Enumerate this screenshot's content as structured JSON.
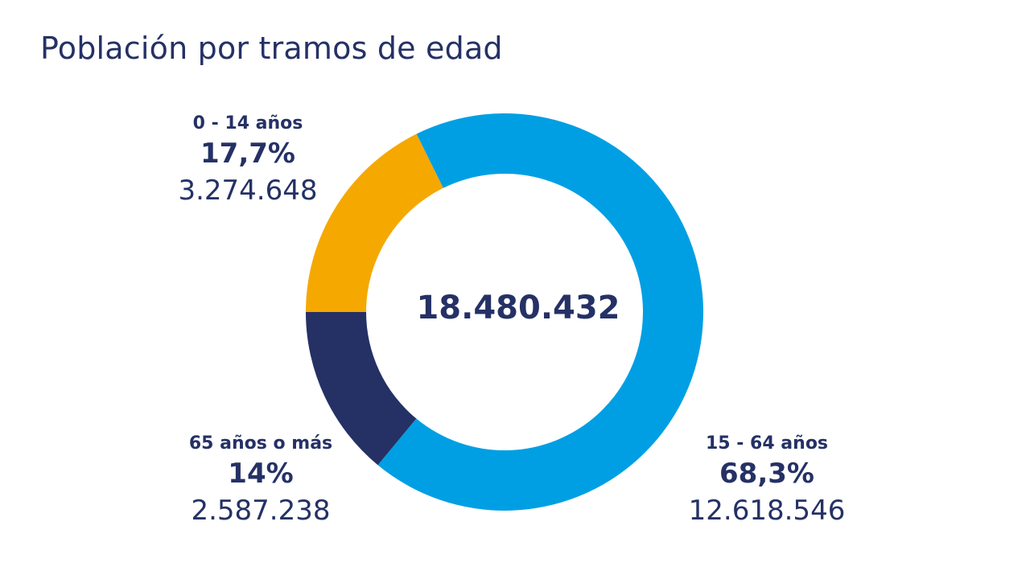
{
  "chart_data": {
    "type": "pie",
    "title": "Población por tramos de edad",
    "total": "18.480.432",
    "slices": [
      {
        "name": "0 - 14 años",
        "percent_label": "17,7%",
        "percent": 17.7,
        "value_label": "3.274.648",
        "value": 3274648,
        "color": "#F5A800"
      },
      {
        "name": "15 - 64 años",
        "percent_label": "68,3%",
        "percent": 68.3,
        "value_label": "12.618.546",
        "value": 12618546,
        "color": "#009FE3"
      },
      {
        "name": "65 años o más",
        "percent_label": "14%",
        "percent": 14.0,
        "value_label": "2.587.238",
        "value": 2587238,
        "color": "#253165"
      }
    ]
  }
}
